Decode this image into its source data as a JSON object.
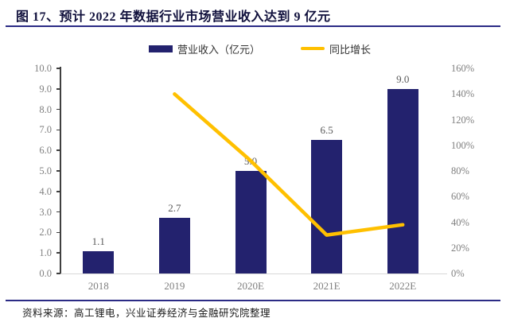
{
  "header": {
    "title": "图 17、预计 2022 年数据行业市场营业收入达到 9 亿元"
  },
  "legend": {
    "bar_label": "营业收入（亿元）",
    "line_label": "同比增长"
  },
  "chart_data": {
    "type": "combo-bar-line",
    "categories": [
      "2018",
      "2019",
      "2020E",
      "2021E",
      "2022E"
    ],
    "series": [
      {
        "name": "营业收入（亿元）",
        "type": "bar",
        "axis": "left",
        "values": [
          1.1,
          2.7,
          5.0,
          6.5,
          9.0
        ],
        "data_labels": [
          "1.1",
          "2.7",
          "5.0",
          "6.5",
          "9.0"
        ],
        "color": "#23226E"
      },
      {
        "name": "同比增长",
        "type": "line",
        "axis": "right",
        "values": [
          null,
          140,
          88,
          30,
          38
        ],
        "unit": "%",
        "color": "#FFC000"
      }
    ],
    "left_axis": {
      "min": 0,
      "max": 10,
      "step": 1,
      "tick_labels": [
        "0.0",
        "1.0",
        "2.0",
        "3.0",
        "4.0",
        "5.0",
        "6.0",
        "7.0",
        "8.0",
        "9.0",
        "10.0"
      ]
    },
    "right_axis": {
      "min": 0,
      "max": 160,
      "step": 20,
      "tick_labels": [
        "0%",
        "20%",
        "40%",
        "60%",
        "80%",
        "100%",
        "120%",
        "140%",
        "160%"
      ]
    },
    "grid": false,
    "legend_position": "top"
  },
  "colors": {
    "bar_navy": "#23226E",
    "line_yellow": "#FFC000",
    "title_navy": "#10103C",
    "rule_navy": "#2B2B85",
    "axis_label_gray": "#7F7F7F",
    "data_label_gray": "#595959",
    "baseline_gray": "#D9D9D9",
    "axis_line_dark": "#3F3F3F"
  },
  "footer": {
    "source": "资料来源：高工锂电，兴业证券经济与金融研究院整理"
  }
}
